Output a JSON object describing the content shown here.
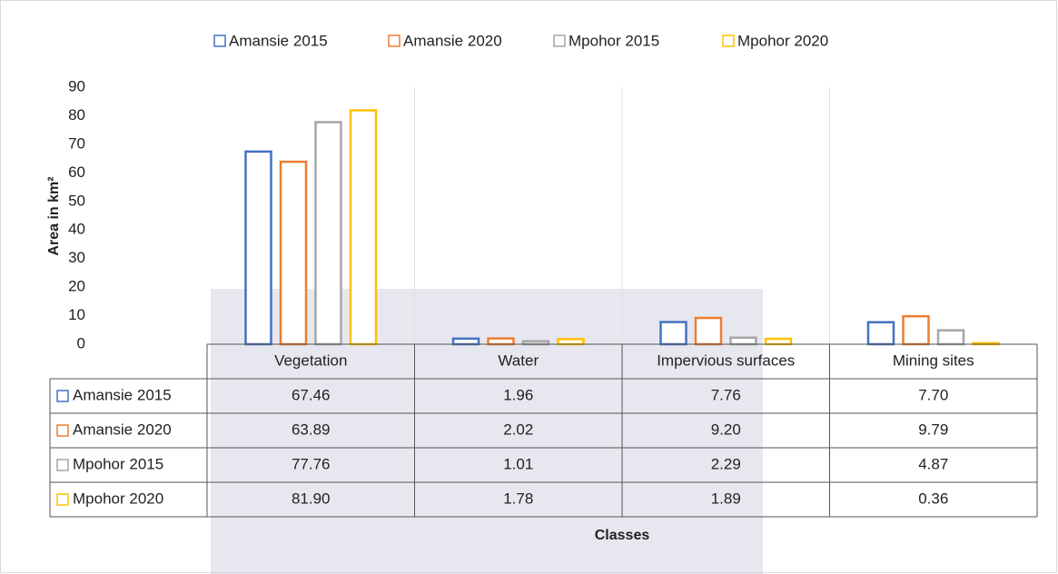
{
  "chart_data": {
    "type": "bar",
    "y_axis_label": "Area in km²",
    "x_axis_label": "Classes",
    "categories": [
      "Vegetation",
      "Water",
      "Impervious surfaces",
      "Mining sites"
    ],
    "series": [
      {
        "name": "Amansie 2015",
        "color": "#4472c4",
        "values": [
          67.46,
          1.96,
          7.76,
          7.7
        ],
        "value_labels": [
          "67.46",
          "1.96",
          "7.76",
          "7.70"
        ]
      },
      {
        "name": "Amansie 2020",
        "color": "#ed7d31",
        "values": [
          63.89,
          2.02,
          9.2,
          9.79
        ],
        "value_labels": [
          "63.89",
          "2.02",
          "9.20",
          "9.79"
        ]
      },
      {
        "name": "Mpohor 2015",
        "color": "#a5a5a5",
        "values": [
          77.76,
          1.01,
          2.29,
          4.87
        ],
        "value_labels": [
          "77.76",
          "1.01",
          "2.29",
          "4.87"
        ]
      },
      {
        "name": "Mpohor 2020",
        "color": "#ffc000",
        "values": [
          81.9,
          1.78,
          1.89,
          0.36
        ],
        "value_labels": [
          "81.90",
          "1.78",
          "1.89",
          "0.36"
        ]
      }
    ],
    "ylim": [
      0,
      90
    ],
    "yticks": [
      0,
      10,
      20,
      30,
      40,
      50,
      60,
      70,
      80,
      90
    ]
  }
}
